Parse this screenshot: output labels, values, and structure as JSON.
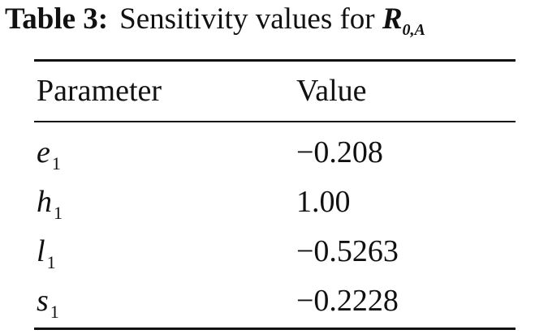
{
  "caption": {
    "label": "Table 3:",
    "text": "Sensitivity values for",
    "symbol": "R",
    "symbol_sub": "0,A"
  },
  "table": {
    "header": [
      "Parameter",
      "Value"
    ],
    "rows": [
      {
        "symbol": "e",
        "sub": "1",
        "value": "−0.208"
      },
      {
        "symbol": "h",
        "sub": "1",
        "value": "1.00"
      },
      {
        "symbol": "l",
        "sub": "1",
        "value": "−0.5263"
      },
      {
        "symbol": "s",
        "sub": "1",
        "value": "−0.2228"
      }
    ]
  }
}
